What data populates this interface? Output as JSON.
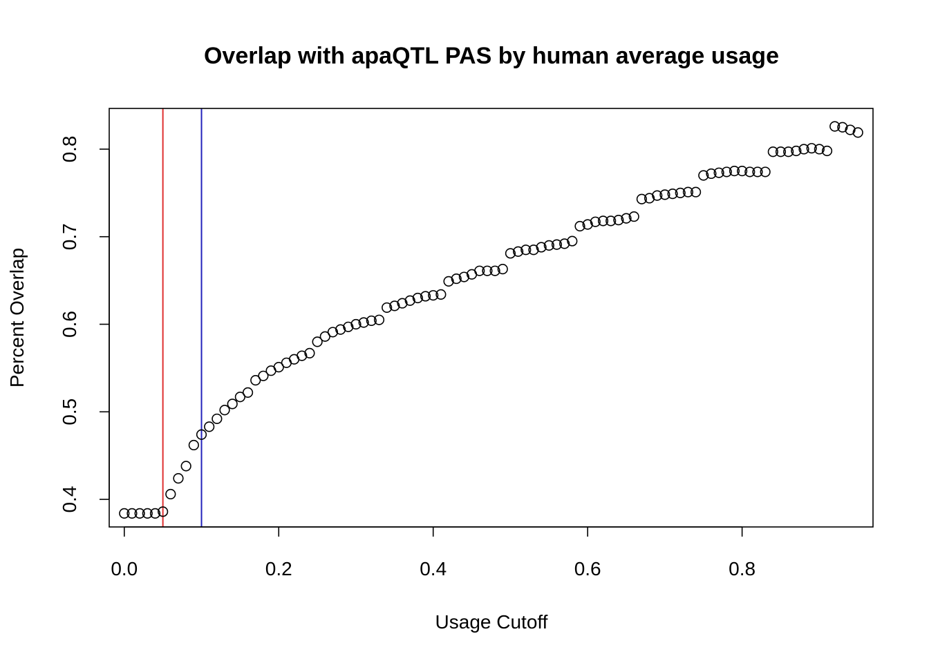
{
  "chart_data": {
    "type": "scatter",
    "title": "Overlap with apaQTL PAS by human average usage",
    "xlabel": "Usage Cutoff",
    "ylabel": "Percent Overlap",
    "xlim": [
      -0.0195,
      0.9695
    ],
    "ylim": [
      0.3685,
      0.8465
    ],
    "xticks": [
      0.0,
      0.2,
      0.4,
      0.6,
      0.8
    ],
    "xtick_labels": [
      "0.0",
      "0.2",
      "0.4",
      "0.6",
      "0.8"
    ],
    "yticks": [
      0.4,
      0.5,
      0.6,
      0.7,
      0.8
    ],
    "ytick_labels": [
      "0.4",
      "0.5",
      "0.6",
      "0.7",
      "0.8"
    ],
    "grid": false,
    "legend": "none",
    "point_color": "#000000",
    "vlines": [
      {
        "x": 0.05,
        "color": "#DF2F2F"
      },
      {
        "x": 0.1,
        "color": "#2222BB"
      }
    ],
    "x": [
      0.0,
      0.01,
      0.02,
      0.03,
      0.04,
      0.05,
      0.06,
      0.07,
      0.08,
      0.09,
      0.1,
      0.11,
      0.12,
      0.13,
      0.14,
      0.15,
      0.16,
      0.17,
      0.18,
      0.19,
      0.2,
      0.21,
      0.22,
      0.23,
      0.24,
      0.25,
      0.26,
      0.27,
      0.28,
      0.29,
      0.3,
      0.31,
      0.32,
      0.33,
      0.34,
      0.35,
      0.36,
      0.37,
      0.38,
      0.39,
      0.4,
      0.41,
      0.42,
      0.43,
      0.44,
      0.45,
      0.46,
      0.47,
      0.48,
      0.49,
      0.5,
      0.51,
      0.52,
      0.53,
      0.54,
      0.55,
      0.56,
      0.57,
      0.58,
      0.59,
      0.6,
      0.61,
      0.62,
      0.63,
      0.64,
      0.65,
      0.66,
      0.67,
      0.68,
      0.69,
      0.7,
      0.71,
      0.72,
      0.73,
      0.74,
      0.75,
      0.76,
      0.77,
      0.78,
      0.79,
      0.8,
      0.81,
      0.82,
      0.83,
      0.84,
      0.85,
      0.86,
      0.87,
      0.88,
      0.89,
      0.9,
      0.91,
      0.92,
      0.93,
      0.94,
      0.95
    ],
    "y": [
      0.384,
      0.384,
      0.384,
      0.384,
      0.384,
      0.386,
      0.406,
      0.424,
      0.438,
      0.462,
      0.474,
      0.483,
      0.492,
      0.502,
      0.509,
      0.517,
      0.522,
      0.536,
      0.541,
      0.547,
      0.551,
      0.556,
      0.56,
      0.564,
      0.567,
      0.58,
      0.586,
      0.591,
      0.594,
      0.597,
      0.6,
      0.602,
      0.604,
      0.605,
      0.619,
      0.621,
      0.624,
      0.627,
      0.63,
      0.632,
      0.633,
      0.634,
      0.649,
      0.652,
      0.654,
      0.657,
      0.661,
      0.661,
      0.661,
      0.663,
      0.681,
      0.683,
      0.685,
      0.685,
      0.688,
      0.69,
      0.691,
      0.692,
      0.695,
      0.712,
      0.714,
      0.717,
      0.718,
      0.718,
      0.719,
      0.721,
      0.723,
      0.743,
      0.744,
      0.747,
      0.748,
      0.749,
      0.75,
      0.751,
      0.751,
      0.77,
      0.772,
      0.773,
      0.774,
      0.775,
      0.775,
      0.774,
      0.774,
      0.774,
      0.797,
      0.797,
      0.797,
      0.798,
      0.8,
      0.801,
      0.8,
      0.798,
      0.826,
      0.825,
      0.822,
      0.819
    ]
  }
}
